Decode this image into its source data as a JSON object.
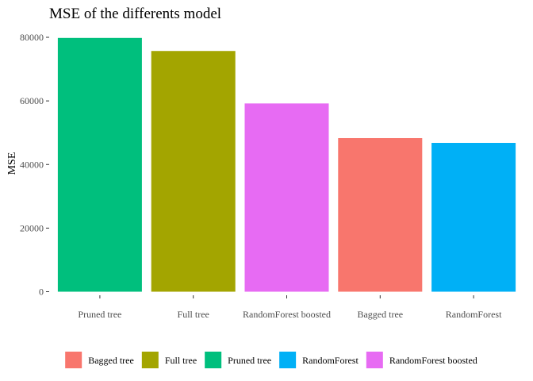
{
  "chart_data": {
    "type": "bar",
    "title": "MSE of the differents model",
    "xlabel": "",
    "ylabel": "MSE",
    "ylim": [
      0,
      80000
    ],
    "yticks": [
      0,
      20000,
      40000,
      60000,
      80000
    ],
    "grid": false,
    "legend_position": "bottom",
    "categories": [
      "Pruned tree",
      "Full tree",
      "RandomForest boosted",
      "Bagged tree",
      "RandomForest"
    ],
    "values": [
      79800,
      75700,
      59200,
      48300,
      46800
    ],
    "colors": [
      "#00BF7D",
      "#A3A500",
      "#E76BF3",
      "#F8766D",
      "#00B0F6"
    ],
    "legend": [
      {
        "label": "Bagged tree",
        "color": "#F8766D"
      },
      {
        "label": "Full tree",
        "color": "#A3A500"
      },
      {
        "label": "Pruned tree",
        "color": "#00BF7D"
      },
      {
        "label": "RandomForest",
        "color": "#00B0F6"
      },
      {
        "label": "RandomForest boosted",
        "color": "#E76BF3"
      }
    ]
  }
}
